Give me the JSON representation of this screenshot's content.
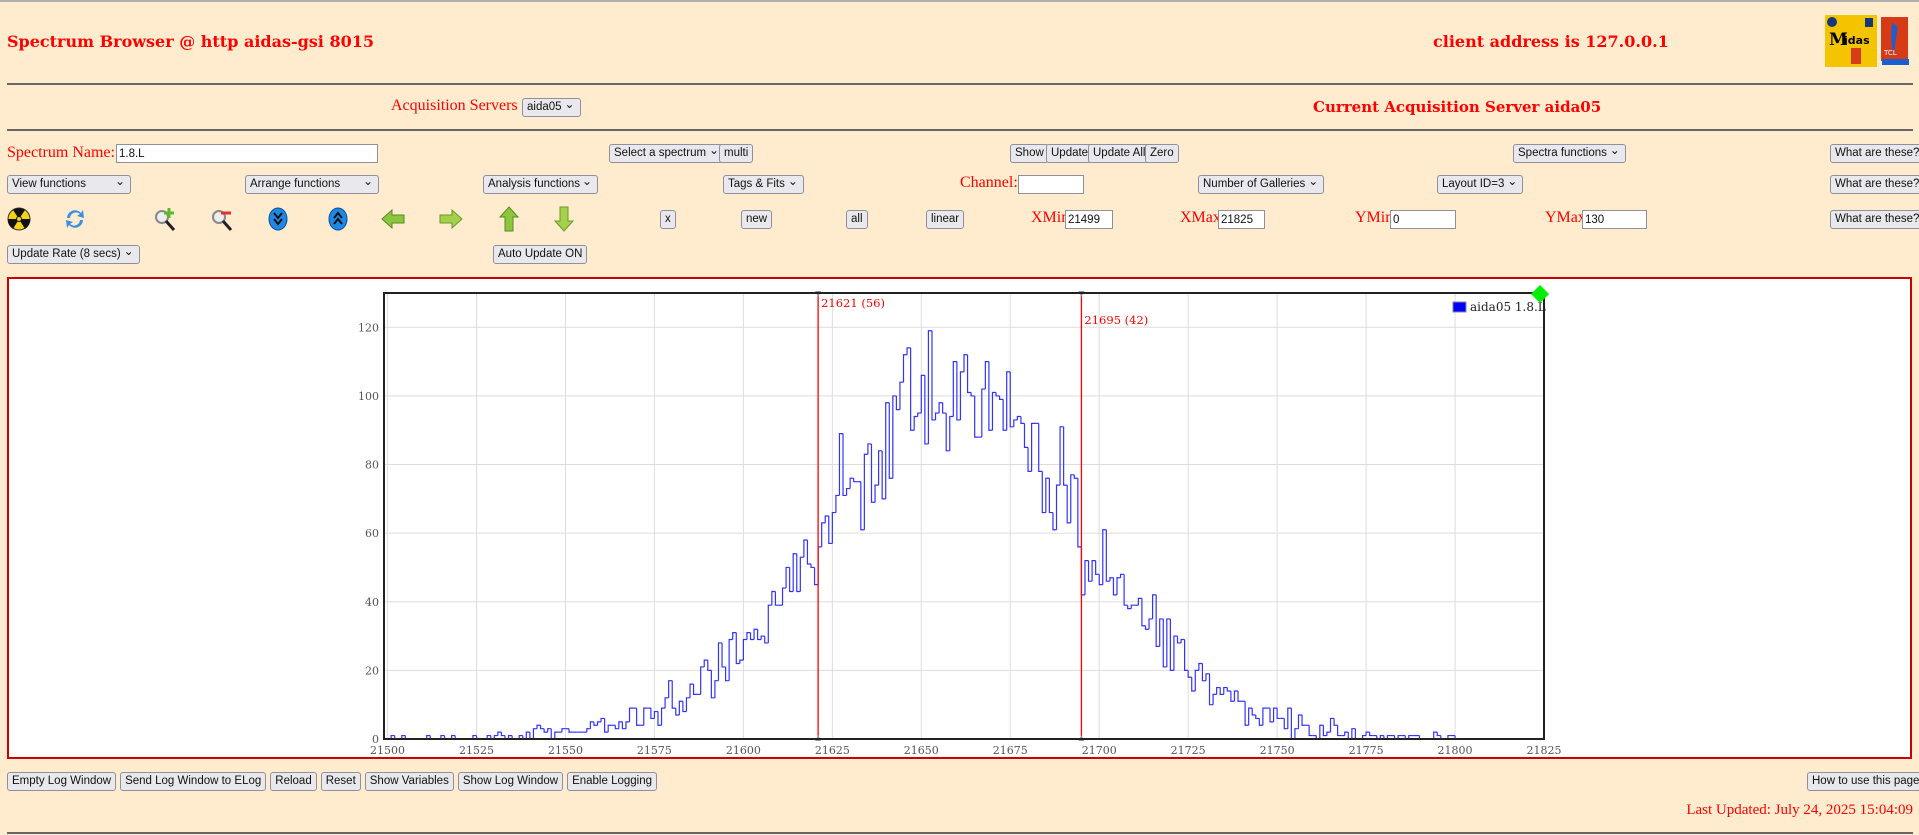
{
  "header": {
    "title": "Spectrum Browser @ http aidas-gsi 8015",
    "client_address": "client address is 127.0.0.1",
    "logos": [
      "Midas",
      "TCL powered"
    ]
  },
  "servers": {
    "label": "Acquisition Servers",
    "selected": "aida05",
    "current": "Current Acquisition Server aida05"
  },
  "row1": {
    "spectrum_name_label": "Spectrum Name:",
    "spectrum_name_value": "1.8.L",
    "select_spectrum": "Select a spectrum",
    "multi": "multi",
    "show": "Show",
    "update": "Update",
    "update_all": "Update All",
    "zero": "Zero",
    "spectra_functions": "Spectra functions",
    "what": "What are these?"
  },
  "row2": {
    "view_functions": "View functions",
    "arrange_functions": "Arrange functions",
    "analysis_functions": "Analysis functions",
    "tags_fits": "Tags & Fits",
    "channel_label": "Channel:",
    "channel_value": "",
    "galleries": "Number of Galleries",
    "layout": "Layout ID=3",
    "what": "What are these?"
  },
  "row3": {
    "icons": [
      "radiation-icon",
      "refresh-icon",
      "zoom-in-icon",
      "zoom-out-icon",
      "expand-down-icon",
      "expand-up-icon",
      "arrow-left-icon",
      "arrow-right-icon",
      "arrow-up-icon",
      "arrow-down-icon"
    ],
    "x": "x",
    "new": "new",
    "all": "all",
    "linear": "linear",
    "xmin_label": "XMin",
    "xmin": "21499",
    "xmax_label": "XMax",
    "xmax": "21825",
    "ymin_label": "YMin",
    "ymin": "0",
    "ymax_label": "YMax",
    "ymax": "130",
    "what": "What are these?"
  },
  "row4": {
    "update_rate": "Update Rate (8 secs)",
    "auto_update": "Auto Update ON"
  },
  "footer": {
    "buttons": [
      "Empty Log Window",
      "Send Log Window to ELog",
      "Reload",
      "Reset",
      "Show Variables",
      "Show Log Window",
      "Enable Logging"
    ],
    "how_to": "How to use this page",
    "last_updated": "Last Updated: July 24, 2025 15:04:09"
  },
  "colors": {
    "background": "#ffebcd",
    "accent": "#ff0000",
    "series": "#0000ff",
    "marker": "#ff0000",
    "corner": "#00ee00"
  },
  "chart_data": {
    "type": "histogram",
    "xlim": [
      21499,
      21825
    ],
    "ylim": [
      0,
      130
    ],
    "grid": true,
    "legend_placement": "top-right",
    "xticks": [
      21500,
      21525,
      21550,
      21575,
      21600,
      21625,
      21650,
      21675,
      21700,
      21725,
      21750,
      21775,
      21800,
      21825
    ],
    "yticks": [
      0,
      20,
      40,
      60,
      80,
      100,
      120
    ],
    "series": [
      {
        "name": "aida05 1.8.L",
        "start_channel": 21499,
        "counts": [
          0,
          0,
          1,
          0,
          0,
          1,
          0,
          0,
          0,
          0,
          0,
          0,
          1,
          0,
          0,
          0,
          1,
          0,
          0,
          1,
          0,
          0,
          0,
          0,
          0,
          1,
          0,
          0,
          0,
          1,
          0,
          1,
          2,
          1,
          0,
          1,
          0,
          0,
          1,
          0,
          2,
          0,
          3,
          4,
          3,
          2,
          3,
          0,
          2,
          2,
          3,
          3,
          2,
          2,
          2,
          2,
          2,
          3,
          5,
          4,
          5,
          6,
          2,
          4,
          4,
          3,
          5,
          3,
          5,
          9,
          9,
          4,
          4,
          9,
          9,
          6,
          8,
          4,
          9,
          12,
          17,
          9,
          7,
          11,
          8,
          12,
          16,
          13,
          13,
          21,
          23,
          20,
          12,
          17,
          28,
          21,
          17,
          29,
          31,
          22,
          23,
          29,
          31,
          29,
          32,
          29,
          30,
          28,
          39,
          43,
          39,
          39,
          44,
          50,
          43,
          54,
          43,
          53,
          58,
          51,
          50,
          45,
          56,
          63,
          65,
          57,
          66,
          71,
          89,
          71,
          73,
          76,
          75,
          75,
          61,
          83,
          86,
          69,
          74,
          84,
          70,
          98,
          76,
          100,
          96,
          104,
          112,
          114,
          90,
          94,
          95,
          106,
          86,
          119,
          93,
          95,
          98,
          95,
          84,
          94,
          110,
          93,
          107,
          112,
          101,
          100,
          88,
          88,
          102,
          110,
          90,
          101,
          100,
          99,
          90,
          107,
          91,
          93,
          94,
          92,
          85,
          78,
          92,
          92,
          78,
          66,
          76,
          66,
          61,
          74,
          91,
          74,
          63,
          77,
          76,
          56,
          42,
          52,
          46,
          52,
          48,
          45,
          61,
          46,
          47,
          42,
          47,
          48,
          39,
          38,
          39,
          39,
          41,
          33,
          32,
          35,
          42,
          27,
          35,
          21,
          35,
          20,
          30,
          28,
          29,
          20,
          18,
          14,
          20,
          22,
          17,
          19,
          10,
          13,
          15,
          13,
          15,
          14,
          11,
          14,
          11,
          11,
          4,
          9,
          7,
          6,
          4,
          9,
          9,
          5,
          9,
          6,
          6,
          3,
          9,
          0,
          3,
          7,
          4,
          4,
          1,
          1,
          0,
          4,
          1,
          2,
          6,
          4,
          1,
          1,
          2,
          0,
          3,
          0,
          0,
          1,
          2,
          1,
          1,
          0,
          1,
          0,
          1,
          1,
          0,
          1,
          1,
          0,
          1,
          1,
          1,
          0,
          0,
          0,
          0,
          2,
          1,
          0,
          0,
          1,
          1,
          0,
          0,
          0,
          0,
          0,
          0,
          0,
          0,
          0,
          0,
          0,
          0,
          0,
          0,
          0,
          0,
          0,
          0,
          0,
          0,
          0,
          0,
          0,
          0,
          0
        ]
      }
    ],
    "markers": [
      {
        "channel": 21621,
        "label": "21621 (56)"
      },
      {
        "channel": 21695,
        "label": "21695 (42)"
      }
    ]
  }
}
